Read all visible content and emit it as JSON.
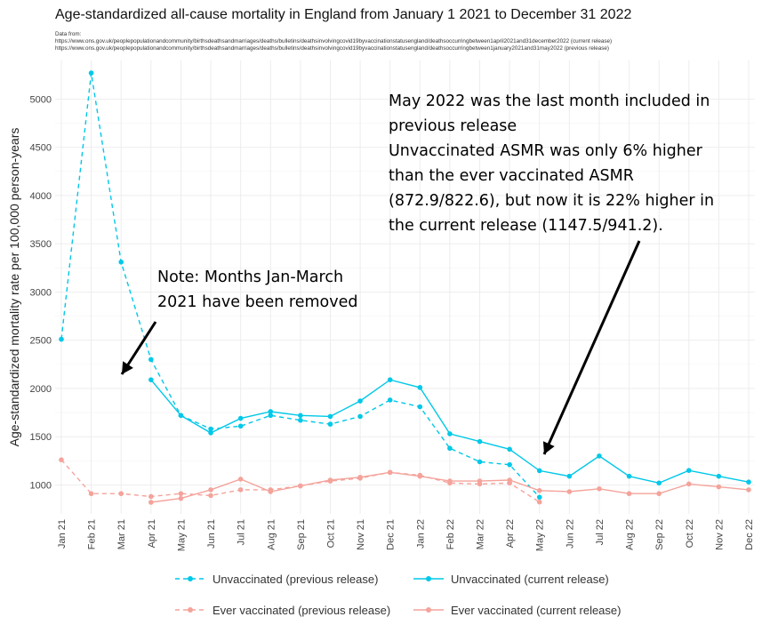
{
  "title": "Age-standardized all-cause mortality in England from January 1 2021 to December 31 2022",
  "source": {
    "label": "Data from:",
    "line1": "https://www.ons.gov.uk/peoplepopulationandcommunity/birthsdeathsandmarriages/deaths/bulletins/deathsinvolvingcovid19byvaccinationstatusengland/deathsoccurringbetween1april2021and31december2022 (current release)",
    "line2": "https://www.ons.gov.uk/peoplepopulationandcommunity/birthsdeathsandmarriages/deaths/bulletins/deathsinvolvingcovid19byvaccinationstatusengland/deathsoccurringbetween1january2021and31may2022 (previous release)"
  },
  "annotations": {
    "right_lines": [
      "May 2022 was the last month included in",
      "previous release",
      "Unvaccinated ASMR was only 6% higher",
      "than the ever vaccinated ASMR",
      "(872.9/822.6),  but now it is 22% higher in",
      "the current release (1147.5/941.2)."
    ],
    "left_lines": [
      "Note: Months Jan-March",
      "2021 have been removed"
    ]
  },
  "chart_data": {
    "type": "line",
    "title": "Age-standardized all-cause mortality in England from January 1 2021 to December 31 2022",
    "xlabel": "",
    "ylabel": "Age-standardized mortality rate per 100,000 person-years",
    "categories": [
      "Jan 21",
      "Feb 21",
      "Mar 21",
      "Apr 21",
      "May 21",
      "Jun 21",
      "Jul 21",
      "Aug 21",
      "Sep 21",
      "Oct 21",
      "Nov 21",
      "Dec 21",
      "Jan 22",
      "Feb 22",
      "Mar 22",
      "Apr 22",
      "May 22",
      "Jun 22",
      "Jul 22",
      "Aug 22",
      "Sep 22",
      "Oct 22",
      "Nov 22",
      "Dec 22"
    ],
    "yticks": [
      1000,
      1500,
      2000,
      2500,
      3000,
      3500,
      4000,
      4500,
      5000
    ],
    "ylim": [
      700,
      5400
    ],
    "grid": true,
    "legend_position": "bottom",
    "series": [
      {
        "name": "Unvaccinated (previous release)",
        "color": "#00c8e8",
        "dash": true,
        "values": [
          2510,
          5270,
          3310,
          2300,
          1720,
          1580,
          1610,
          1720,
          1670,
          1630,
          1710,
          1880,
          1810,
          1380,
          1240,
          1210,
          872.9,
          null,
          null,
          null,
          null,
          null,
          null,
          null
        ]
      },
      {
        "name": "Unvaccinated (current release)",
        "color": "#00c8e8",
        "dash": false,
        "values": [
          null,
          null,
          null,
          2090,
          1720,
          1540,
          1690,
          1760,
          1720,
          1710,
          1870,
          2090,
          2010,
          1530,
          1450,
          1370,
          1147.5,
          1090,
          1300,
          1090,
          1020,
          1150,
          1090,
          1030
        ]
      },
      {
        "name": "Ever vaccinated (previous release)",
        "color": "#f4a39b",
        "dash": true,
        "values": [
          1260,
          910,
          910,
          880,
          910,
          890,
          950,
          950,
          990,
          1040,
          1070,
          1130,
          1100,
          1020,
          1010,
          1020,
          822.6,
          null,
          null,
          null,
          null,
          null,
          null,
          null
        ]
      },
      {
        "name": "Ever vaccinated (current release)",
        "color": "#f4a39b",
        "dash": false,
        "values": [
          null,
          null,
          null,
          820,
          860,
          950,
          1060,
          930,
          990,
          1050,
          1080,
          1130,
          1090,
          1040,
          1040,
          1050,
          941.2,
          930,
          960,
          910,
          910,
          1010,
          980,
          950
        ]
      }
    ]
  }
}
